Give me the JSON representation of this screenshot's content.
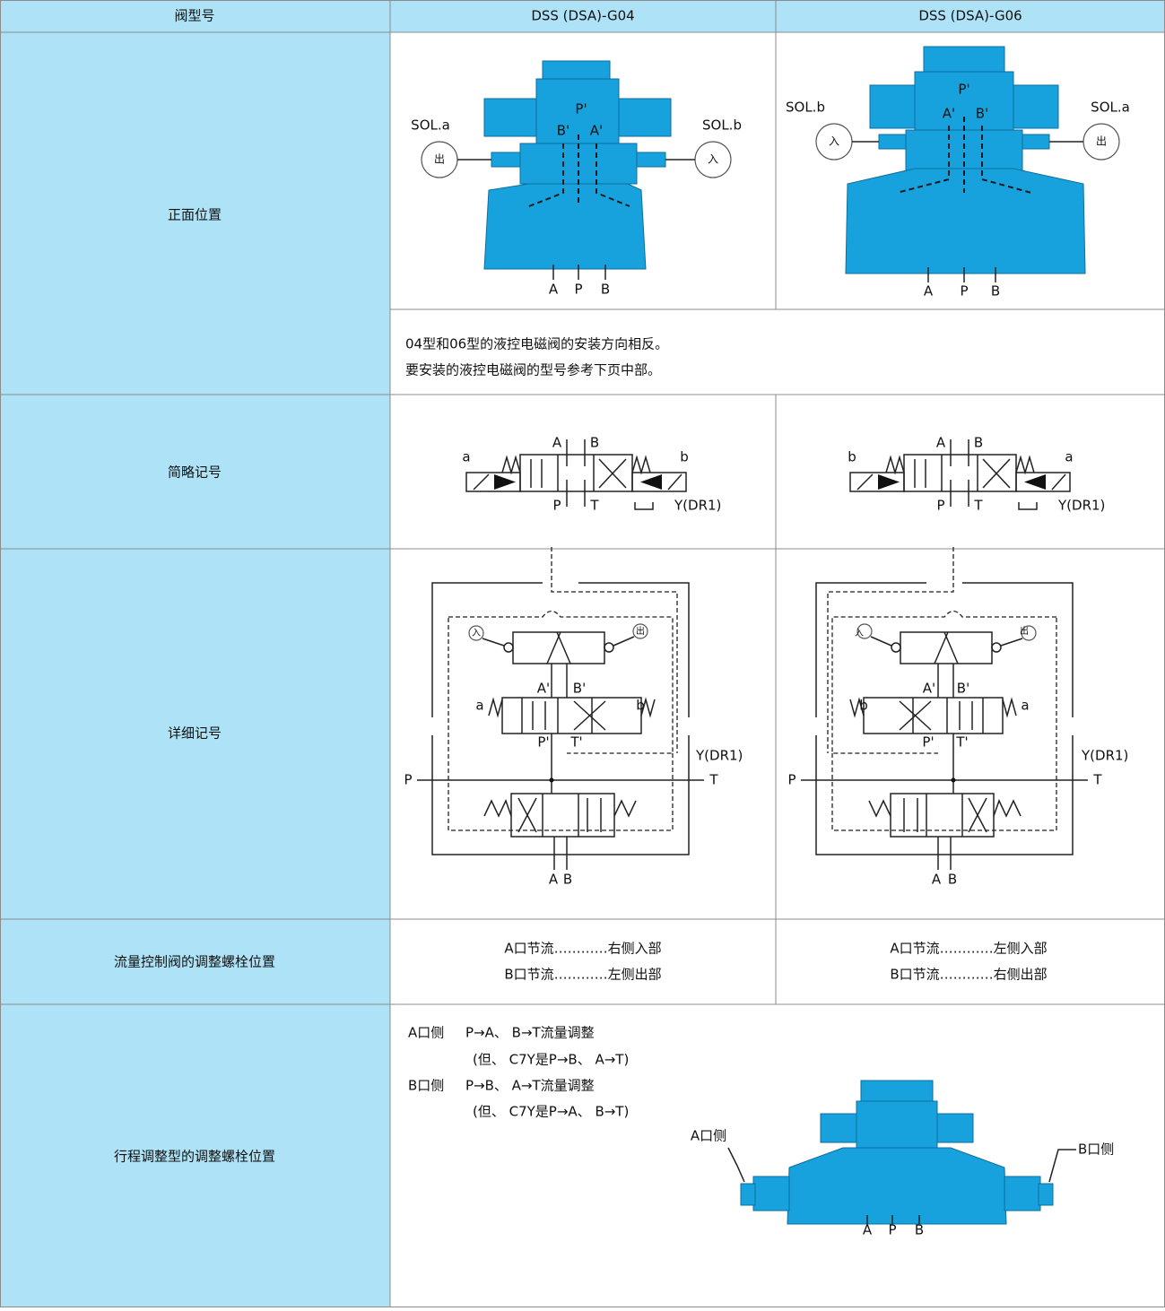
{
  "table": {
    "header": [
      "阀型号",
      "DSS (DSA)-G04",
      "DSS (DSA)-G06"
    ],
    "rows": [
      {
        "label": "正面位置",
        "g04": [
          "SOL.a",
          "SOL.b",
          "出",
          "入",
          "P'",
          "B'",
          "A'",
          "A",
          "P",
          "B"
        ],
        "g06": [
          "SOL.b",
          "SOL.a",
          "入",
          "出",
          "P'",
          "A'",
          "B'",
          "A",
          "P",
          "B"
        ],
        "note": [
          "04型和06型的液控电磁阀的安装方向相反。",
          "要安装的液控电磁阀的型号参考下页中部。"
        ]
      },
      {
        "label": "简略记号",
        "g04": [
          "a",
          "A",
          "B",
          "b",
          "P",
          "T",
          "Y(DR1)"
        ],
        "g06": [
          "b",
          "A",
          "B",
          "a",
          "P",
          "T",
          "Y(DR1)"
        ]
      },
      {
        "label": "详细记号",
        "g04": [
          "入",
          "出",
          "A'",
          "B'",
          "a",
          "b",
          "P'",
          "T'",
          "Y(DR1)",
          "P",
          "T",
          "A",
          "B"
        ],
        "g06": [
          "入",
          "出",
          "A'",
          "B'",
          "b",
          "a",
          "P'",
          "T'",
          "Y(DR1)",
          "P",
          "T",
          "A",
          "B"
        ]
      },
      {
        "label": "流量控制阀的调整螺栓位置",
        "g04": [
          "A口节流…………右侧入部",
          "B口节流…………左侧出部"
        ],
        "g06": [
          "A口节流…………左侧入部",
          "B口节流…………右侧出部"
        ]
      },
      {
        "label": "行程调整型的调整螺栓位置",
        "note": [
          "A口侧",
          "P→A、 B→T流量调整",
          "(但、 C7Y是P→B、 A→T)",
          "B口侧",
          "P→B、 A→T流量调整",
          "(但、 C7Y是P→A、 B→T)"
        ],
        "figure": [
          "A口侧",
          "B口侧",
          "A",
          "P",
          "B"
        ]
      }
    ]
  }
}
